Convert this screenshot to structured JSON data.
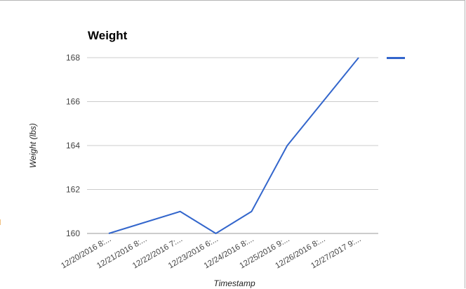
{
  "chart_data": {
    "type": "line",
    "title": "Weight",
    "xlabel": "Timestamp",
    "ylabel": "Weight (lbs)",
    "categories": [
      "12/20/2016 8:...",
      "12/21/2016 8:...",
      "12/22/2016 7:...",
      "12/23/2016 6:...",
      "12/24/2016 8:...",
      "12/25/2016 9:...",
      "12/26/2016 8:...",
      "12/27/2017 9:..."
    ],
    "series": [
      {
        "name": "",
        "values": [
          160,
          160.5,
          161,
          160,
          161,
          164,
          166,
          168
        ],
        "color": "#3366cc"
      }
    ],
    "yticks": [
      160,
      162,
      164,
      166,
      168
    ],
    "ylim": [
      160,
      168
    ],
    "grid": true,
    "legend": "right"
  }
}
